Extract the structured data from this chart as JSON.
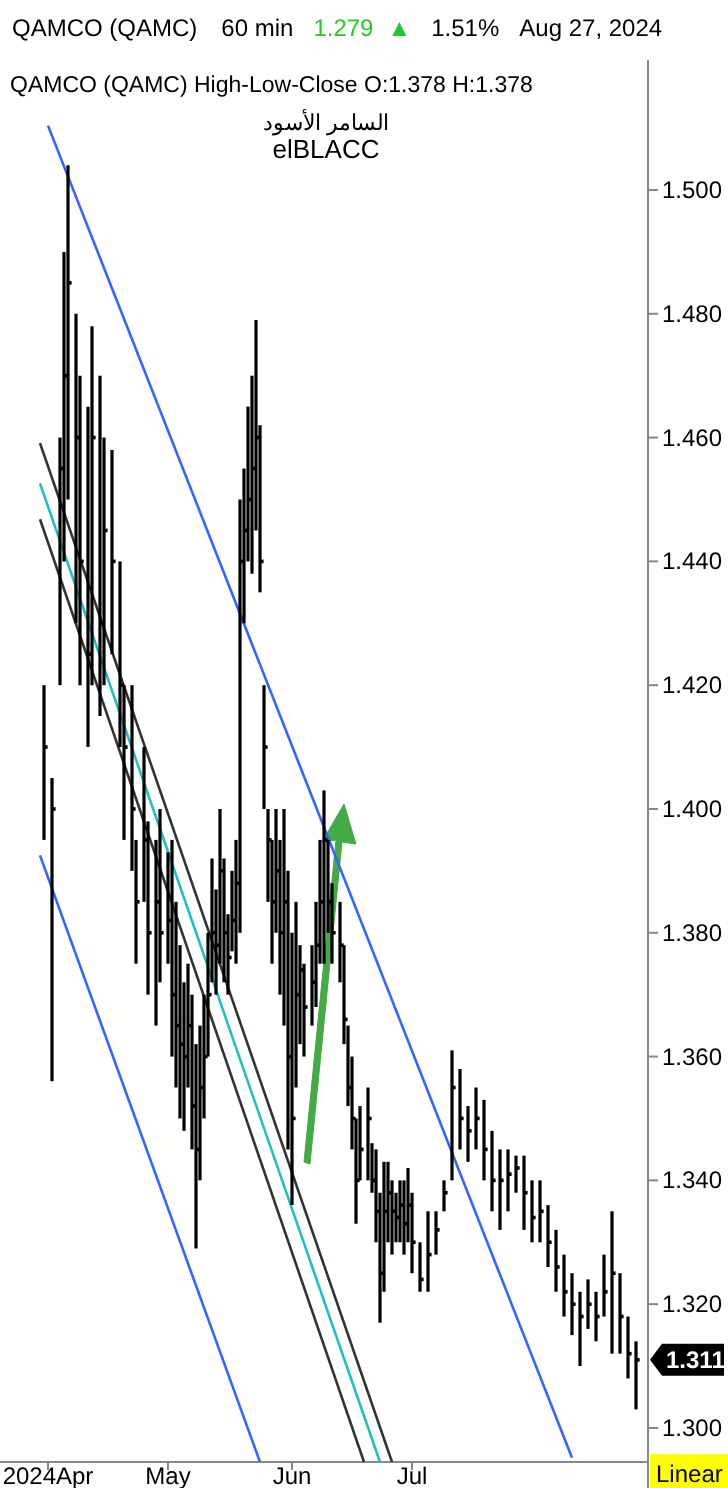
{
  "chart_data": {
    "type": "line",
    "title": "QAMCO  (QAMC)",
    "subtitle": "QAMCO (QAMC)   High-Low-Close   O:1.378   H:1.378",
    "annotations": [
      "60 min",
      "1.279",
      "▲",
      "1.51%",
      "Aug 27, 2024",
      "السامر الأسود",
      "elBLACC",
      "1.311",
      "Linear"
    ],
    "xlim": [
      "2024-03-20",
      "2024-08-29"
    ],
    "xticks": [
      {
        "value": "2024-04-01",
        "label": "2024Apr"
      },
      {
        "value": "2024-05-01",
        "label": "May"
      },
      {
        "value": "2024-06-01",
        "label": "Jun"
      },
      {
        "value": "2024-07-01",
        "label": "Jul"
      }
    ],
    "ylim": [
      1.2945,
      1.521
    ],
    "yticks": [
      {
        "value": 1.3,
        "label": "1.300"
      },
      {
        "value": 1.32,
        "label": "1.320"
      },
      {
        "value": 1.34,
        "label": "1.340"
      },
      {
        "value": 1.36,
        "label": "1.360"
      },
      {
        "value": 1.38,
        "label": "1.380"
      },
      {
        "value": 1.4,
        "label": "1.400"
      },
      {
        "value": 1.42,
        "label": "1.420"
      },
      {
        "value": 1.44,
        "label": "1.440"
      },
      {
        "value": 1.46,
        "label": "1.460"
      },
      {
        "value": 1.48,
        "label": "1.480"
      },
      {
        "value": 1.5,
        "label": "1.500"
      }
    ],
    "grid": false,
    "series": [
      {
        "type": "scatter",
        "color": "#000000",
        "marker": "square",
        "x": [
          "2024-03-31",
          "2024-04-02",
          "2024-04-04",
          "2024-04-05",
          "2024-04-06",
          "2024-04-08",
          "2024-04-09",
          "2024-04-11",
          "2024-04-12",
          "2024-04-14",
          "2024-04-15",
          "2024-04-17",
          "2024-04-19",
          "2024-04-20",
          "2024-04-22",
          "2024-04-23",
          "2024-04-25",
          "2024-04-26",
          "2024-04-28",
          "2024-04-29",
          "2024-05-01",
          "2024-05-02",
          "2024-05-03",
          "2024-05-04",
          "2024-05-05",
          "2024-05-06",
          "2024-05-07",
          "2024-05-08",
          "2024-05-09",
          "2024-05-10",
          "2024-05-11",
          "2024-05-12",
          "2024-05-13",
          "2024-05-14",
          "2024-05-15",
          "2024-05-16",
          "2024-05-17",
          "2024-05-18",
          "2024-05-19",
          "2024-05-20",
          "2024-05-21",
          "2024-05-22",
          "2024-05-23",
          "2024-05-24",
          "2024-05-25",
          "2024-05-26",
          "2024-05-27",
          "2024-05-28",
          "2024-05-29",
          "2024-05-30",
          "2024-05-31",
          "2024-06-01",
          "2024-06-02",
          "2024-06-03",
          "2024-06-04",
          "2024-06-06",
          "2024-06-07",
          "2024-06-08",
          "2024-06-09",
          "2024-06-10",
          "2024-06-11",
          "2024-06-13",
          "2024-06-14",
          "2024-06-15",
          "2024-06-16",
          "2024-06-17",
          "2024-06-18",
          "2024-06-20",
          "2024-06-21",
          "2024-06-22",
          "2024-06-23",
          "2024-06-24",
          "2024-06-25",
          "2024-06-26",
          "2024-06-27",
          "2024-06-28",
          "2024-06-29",
          "2024-06-30",
          "2024-07-01",
          "2024-07-03",
          "2024-07-05",
          "2024-07-07",
          "2024-07-09",
          "2024-07-11",
          "2024-07-13",
          "2024-07-15",
          "2024-07-17",
          "2024-07-19",
          "2024-07-21",
          "2024-07-23",
          "2024-07-25",
          "2024-07-27",
          "2024-07-29",
          "2024-07-31",
          "2024-08-02",
          "2024-08-04",
          "2024-08-06",
          "2024-08-08",
          "2024-08-10",
          "2024-08-12",
          "2024-08-14",
          "2024-08-16",
          "2024-08-18",
          "2024-08-20",
          "2024-08-22",
          "2024-08-24",
          "2024-08-26"
        ],
        "values": [
          1.41,
          1.4,
          1.455,
          1.47,
          1.485,
          1.46,
          1.44,
          1.425,
          1.46,
          1.43,
          1.445,
          1.44,
          1.42,
          1.41,
          1.4,
          1.385,
          1.395,
          1.38,
          1.385,
          1.38,
          1.382,
          1.37,
          1.365,
          1.362,
          1.36,
          1.365,
          1.352,
          1.345,
          1.355,
          1.36,
          1.37,
          1.38,
          1.378,
          1.39,
          1.38,
          1.376,
          1.382,
          1.388,
          1.44,
          1.445,
          1.45,
          1.455,
          1.46,
          1.44,
          1.41,
          1.395,
          1.385,
          1.39,
          1.38,
          1.385,
          1.36,
          1.35,
          1.37,
          1.374,
          1.368,
          1.372,
          1.378,
          1.385,
          1.395,
          1.385,
          1.38,
          1.378,
          1.366,
          1.355,
          1.35,
          1.34,
          1.345,
          1.35,
          1.34,
          1.335,
          1.325,
          1.335,
          1.338,
          1.335,
          1.334,
          1.336,
          1.333,
          1.336,
          1.33,
          1.324,
          1.328,
          1.332,
          1.338,
          1.355,
          1.35,
          1.348,
          1.35,
          1.345,
          1.34,
          1.34,
          1.341,
          1.342,
          1.338,
          1.334,
          1.335,
          1.33,
          1.326,
          1.322,
          1.32,
          1.318,
          1.32,
          1.318,
          1.322,
          1.325,
          1.318,
          1.312,
          1.311
        ],
        "errors": [
          [
            1.395,
            1.42
          ],
          [
            1.356,
            1.405
          ],
          [
            1.42,
            1.46
          ],
          [
            1.44,
            1.49
          ],
          [
            1.45,
            1.504
          ],
          [
            1.43,
            1.48
          ],
          [
            1.42,
            1.47
          ],
          [
            1.41,
            1.465
          ],
          [
            1.42,
            1.478
          ],
          [
            1.415,
            1.47
          ],
          [
            1.42,
            1.46
          ],
          [
            1.425,
            1.458
          ],
          [
            1.41,
            1.44
          ],
          [
            1.395,
            1.42
          ],
          [
            1.39,
            1.42
          ],
          [
            1.375,
            1.395
          ],
          [
            1.385,
            1.41
          ],
          [
            1.37,
            1.398
          ],
          [
            1.365,
            1.395
          ],
          [
            1.372,
            1.4
          ],
          [
            1.375,
            1.393
          ],
          [
            1.36,
            1.395
          ],
          [
            1.355,
            1.385
          ],
          [
            1.35,
            1.378
          ],
          [
            1.348,
            1.372
          ],
          [
            1.355,
            1.375
          ],
          [
            1.345,
            1.37
          ],
          [
            1.329,
            1.362
          ],
          [
            1.34,
            1.365
          ],
          [
            1.35,
            1.37
          ],
          [
            1.36,
            1.38
          ],
          [
            1.372,
            1.392
          ],
          [
            1.37,
            1.387
          ],
          [
            1.375,
            1.4
          ],
          [
            1.372,
            1.392
          ],
          [
            1.37,
            1.383
          ],
          [
            1.377,
            1.39
          ],
          [
            1.375,
            1.395
          ],
          [
            1.38,
            1.45
          ],
          [
            1.43,
            1.455
          ],
          [
            1.44,
            1.465
          ],
          [
            1.438,
            1.47
          ],
          [
            1.445,
            1.479
          ],
          [
            1.435,
            1.462
          ],
          [
            1.4,
            1.42
          ],
          [
            1.385,
            1.4
          ],
          [
            1.375,
            1.395
          ],
          [
            1.38,
            1.4
          ],
          [
            1.37,
            1.395
          ],
          [
            1.365,
            1.4
          ],
          [
            1.345,
            1.39
          ],
          [
            1.336,
            1.38
          ],
          [
            1.355,
            1.385
          ],
          [
            1.362,
            1.378
          ],
          [
            1.36,
            1.375
          ],
          [
            1.365,
            1.378
          ],
          [
            1.368,
            1.385
          ],
          [
            1.375,
            1.395
          ],
          [
            1.375,
            1.403
          ],
          [
            1.38,
            1.395
          ],
          [
            1.375,
            1.388
          ],
          [
            1.372,
            1.385
          ],
          [
            1.362,
            1.378
          ],
          [
            1.352,
            1.365
          ],
          [
            1.345,
            1.36
          ],
          [
            1.333,
            1.35
          ],
          [
            1.34,
            1.352
          ],
          [
            1.34,
            1.355
          ],
          [
            1.338,
            1.346
          ],
          [
            1.33,
            1.345
          ],
          [
            1.317,
            1.338
          ],
          [
            1.322,
            1.343
          ],
          [
            1.33,
            1.343
          ],
          [
            1.328,
            1.34
          ],
          [
            1.33,
            1.338
          ],
          [
            1.33,
            1.34
          ],
          [
            1.328,
            1.34
          ],
          [
            1.33,
            1.342
          ],
          [
            1.325,
            1.338
          ],
          [
            1.322,
            1.33
          ],
          [
            1.322,
            1.335
          ],
          [
            1.328,
            1.335
          ],
          [
            1.335,
            1.34
          ],
          [
            1.34,
            1.361
          ],
          [
            1.345,
            1.358
          ],
          [
            1.343,
            1.352
          ],
          [
            1.345,
            1.355
          ],
          [
            1.34,
            1.353
          ],
          [
            1.335,
            1.348
          ],
          [
            1.332,
            1.345
          ],
          [
            1.335,
            1.345
          ],
          [
            1.338,
            1.344
          ],
          [
            1.332,
            1.344
          ],
          [
            1.33,
            1.34
          ],
          [
            1.33,
            1.34
          ],
          [
            1.326,
            1.336
          ],
          [
            1.322,
            1.332
          ],
          [
            1.318,
            1.328
          ],
          [
            1.315,
            1.325
          ],
          [
            1.31,
            1.322
          ],
          [
            1.316,
            1.324
          ],
          [
            1.314,
            1.322
          ],
          [
            1.318,
            1.328
          ],
          [
            1.312,
            1.335
          ],
          [
            1.312,
            1.325
          ],
          [
            1.308,
            1.318
          ],
          [
            1.303,
            1.314
          ]
        ]
      },
      {
        "type": "line",
        "color": "#3366ff",
        "x": [
          "2024-04-01",
          "2024-08-10"
        ],
        "values": [
          1.5104,
          1.2952
        ]
      },
      {
        "type": "line",
        "color": "#3366ff",
        "x": [
          "2024-03-30",
          "2024-05-24"
        ],
        "values": [
          1.3925,
          1.2945
        ]
      },
      {
        "type": "line",
        "color": "#333333",
        "x": [
          "2024-03-30",
          "2024-06-26"
        ],
        "values": [
          1.4591,
          1.2945
        ]
      },
      {
        "type": "line",
        "color": "#20c0c0",
        "x": [
          "2024-03-30",
          "2024-06-23"
        ],
        "values": [
          1.4526,
          1.2945
        ]
      },
      {
        "type": "line",
        "color": "#333333",
        "x": [
          "2024-03-30",
          "2024-06-19"
        ],
        "values": [
          1.4468,
          1.2945
        ]
      }
    ]
  }
}
